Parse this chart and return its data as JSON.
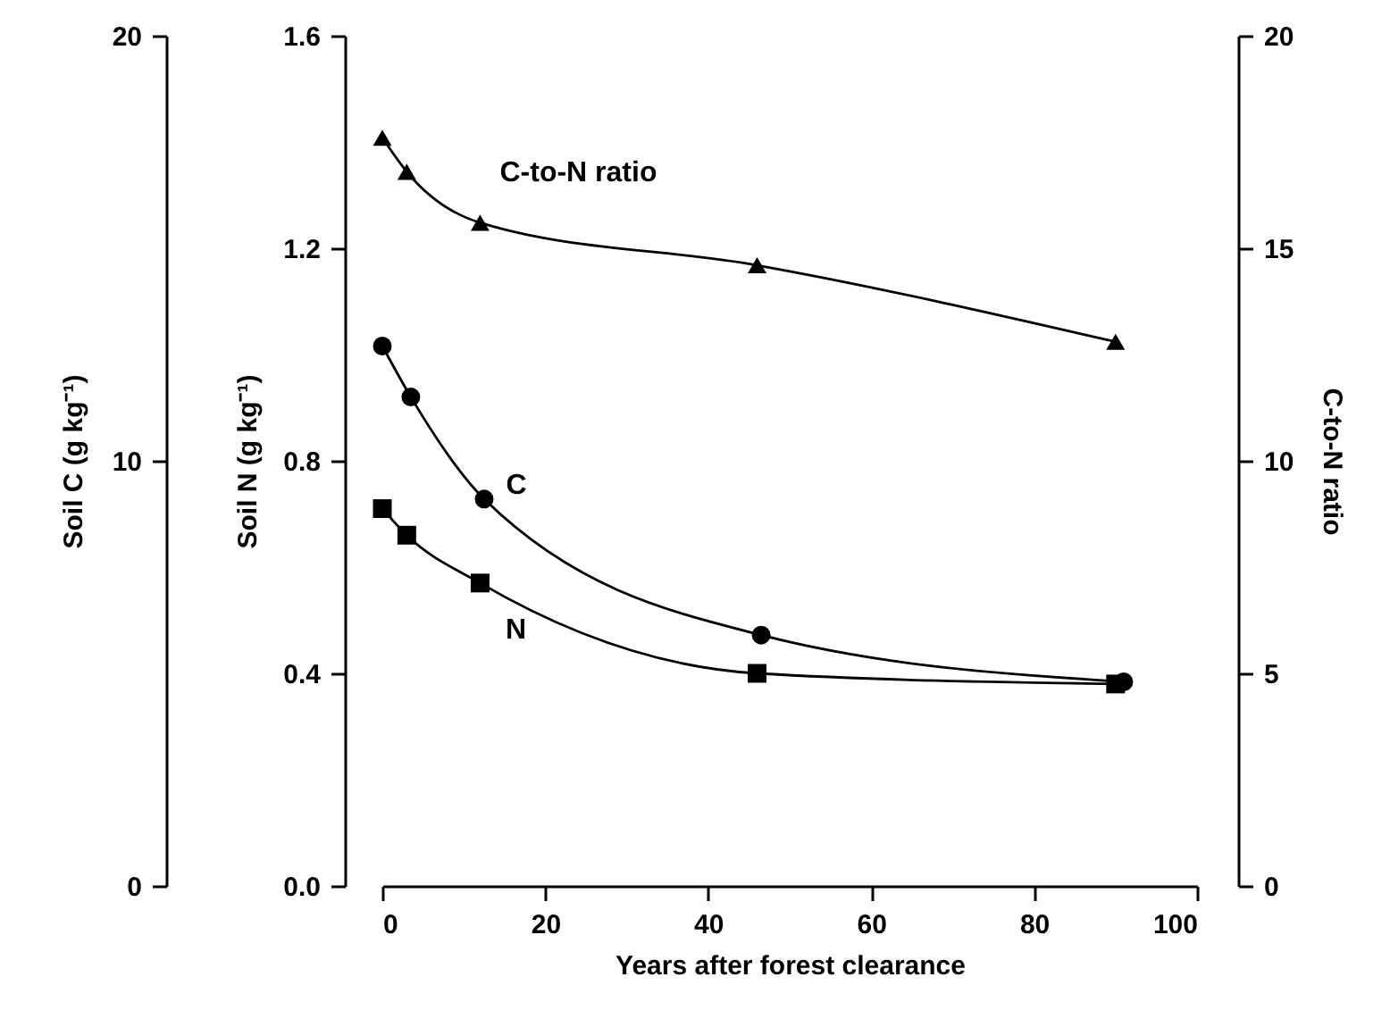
{
  "chart_data": {
    "type": "line",
    "xlabel": "Years after forest clearance",
    "ylabel": "Soil N (g kg⁻¹)",
    "y2label": "C-to-N ratio",
    "y3label": "Soil C (g kg⁻¹)",
    "xlim": [
      0,
      100
    ],
    "xticks": [
      0,
      20,
      40,
      60,
      80,
      100
    ],
    "ylim": [
      0,
      1.6
    ],
    "yticks": [
      {
        "value": 0,
        "label": "0.0"
      },
      {
        "value": 0.4,
        "label": "0.4"
      },
      {
        "value": 0.8,
        "label": "0.8"
      },
      {
        "value": 1.2,
        "label": "1.2"
      },
      {
        "value": 1.6,
        "label": "1.6"
      }
    ],
    "y2lim": [
      0,
      20
    ],
    "y2ticks": [
      0,
      5,
      10,
      15,
      20
    ],
    "y3lim": [
      0,
      20
    ],
    "y3ticks": [
      0,
      10,
      20
    ],
    "grid": false,
    "series": [
      {
        "name": "C-to-N ratio",
        "color": "#000000",
        "axis": "y2",
        "marker": "triangle",
        "x": [
          0,
          3,
          12,
          46,
          90
        ],
        "values": [
          17.6,
          16.8,
          15.6,
          14.6,
          12.8
        ]
      },
      {
        "name": "N",
        "color": "#000000",
        "axis": "y",
        "marker": "square",
        "x": [
          0,
          3,
          12,
          46,
          90
        ],
        "values": [
          0.71,
          0.66,
          0.57,
          0.4,
          0.38
        ]
      },
      {
        "name": "C",
        "color": "#000000",
        "axis": "y3",
        "marker": "circle",
        "x": [
          0,
          3.5,
          12.5,
          46.5,
          91
        ],
        "values": [
          12.7,
          11.5,
          9.1,
          5.9,
          4.8
        ]
      }
    ]
  }
}
